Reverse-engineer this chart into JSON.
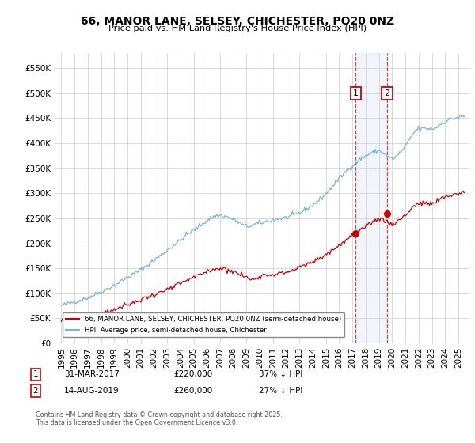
{
  "title": "66, MANOR LANE, SELSEY, CHICHESTER, PO20 0NZ",
  "subtitle": "Price paid vs. HM Land Registry's House Price Index (HPI)",
  "ylim": [
    0,
    580000
  ],
  "yticks": [
    0,
    50000,
    100000,
    150000,
    200000,
    250000,
    300000,
    350000,
    400000,
    450000,
    500000,
    550000
  ],
  "xlabel_years": [
    "1995",
    "1996",
    "1997",
    "1998",
    "1999",
    "2000",
    "2001",
    "2002",
    "2003",
    "2004",
    "2005",
    "2006",
    "2007",
    "2008",
    "2009",
    "2010",
    "2011",
    "2012",
    "2013",
    "2014",
    "2015",
    "2016",
    "2017",
    "2018",
    "2019",
    "2020",
    "2021",
    "2022",
    "2023",
    "2024",
    "2025"
  ],
  "hpi_color": "#7ab4d8",
  "price_color": "#cc0000",
  "vline_color": "#cc4444",
  "span_color": "#c8d8e8",
  "annotation1_year": 2017.25,
  "annotation1_price": 220000,
  "annotation1_date": "31-MAR-2017",
  "annotation1_pct": "37%",
  "annotation2_year": 2019.62,
  "annotation2_price": 260000,
  "annotation2_date": "14-AUG-2019",
  "annotation2_pct": "27%",
  "legend_label_red": "66, MANOR LANE, SELSEY, CHICHESTER, PO20 0NZ (semi-detached house)",
  "legend_label_blue": "HPI: Average price, semi-detached house, Chichester",
  "footer": "Contains HM Land Registry data © Crown copyright and database right 2025.\nThis data is licensed under the Open Government Licence v3.0.",
  "background_color": "#ffffff",
  "grid_color": "#cccccc"
}
